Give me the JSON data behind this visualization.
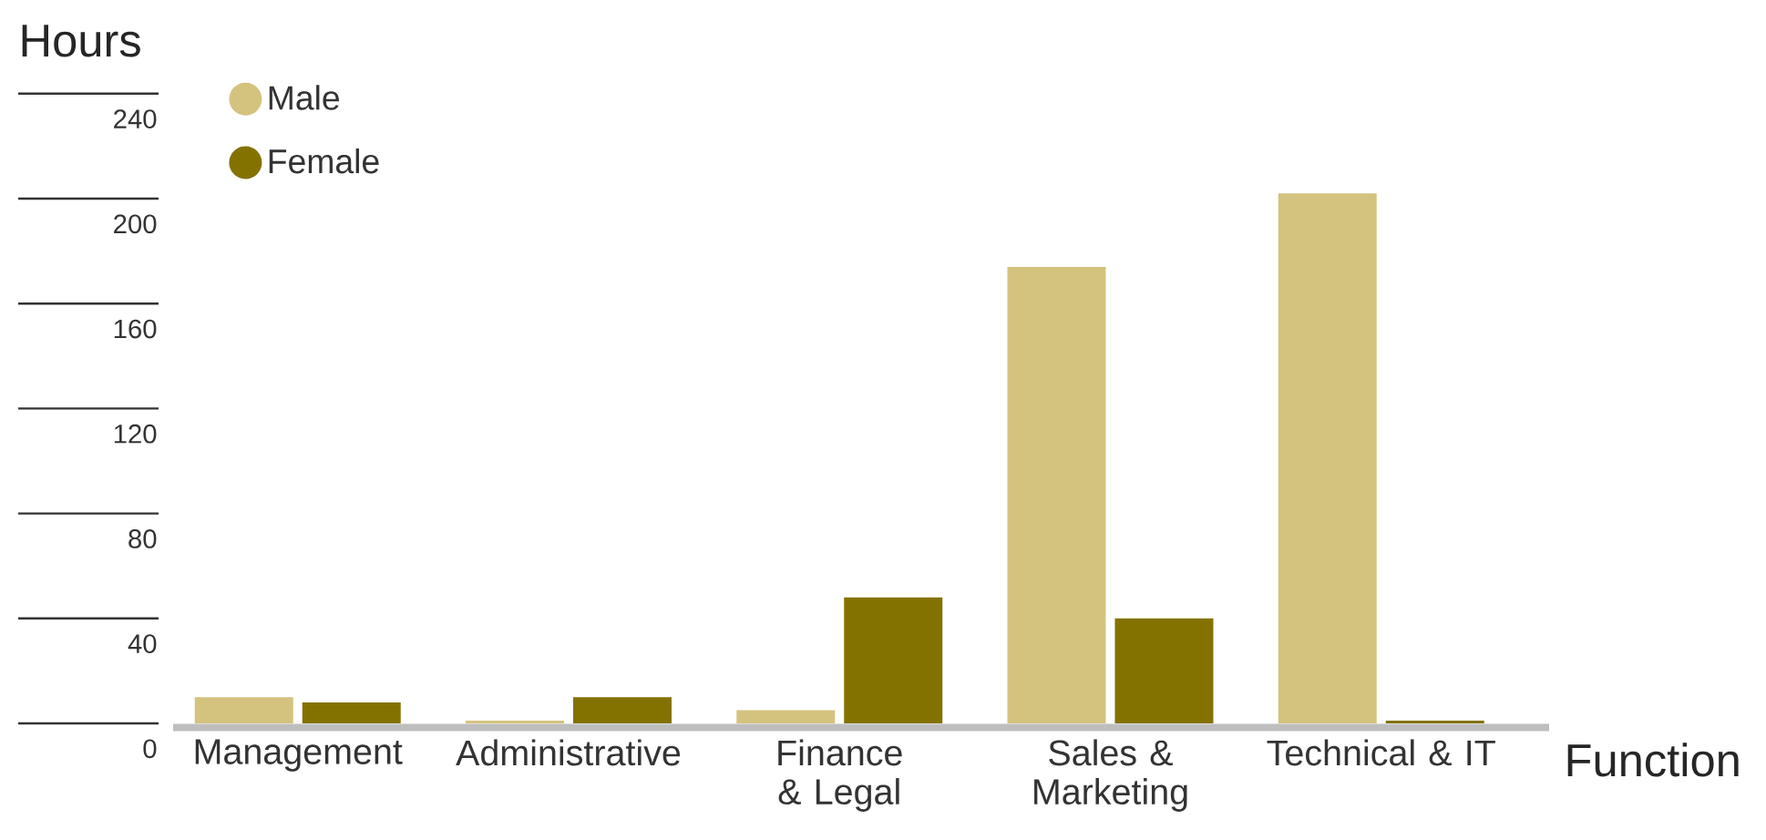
{
  "chart_data": {
    "type": "bar",
    "xlabel": "Function",
    "ylabel": "Hours",
    "categories": [
      "Management",
      "Administrative",
      "Finance & Legal",
      "Sales & Marketing",
      "Technical & IT"
    ],
    "series": [
      {
        "name": "Male",
        "color": "#d4c37f",
        "values": [
          10,
          1,
          5,
          174,
          202
        ]
      },
      {
        "name": "Female",
        "color": "#847200",
        "values": [
          8,
          10,
          48,
          40,
          1
        ]
      }
    ],
    "ylim": [
      0,
      240
    ],
    "yticks": [
      0,
      40,
      80,
      120,
      160,
      200,
      240
    ],
    "legend": "top left"
  }
}
